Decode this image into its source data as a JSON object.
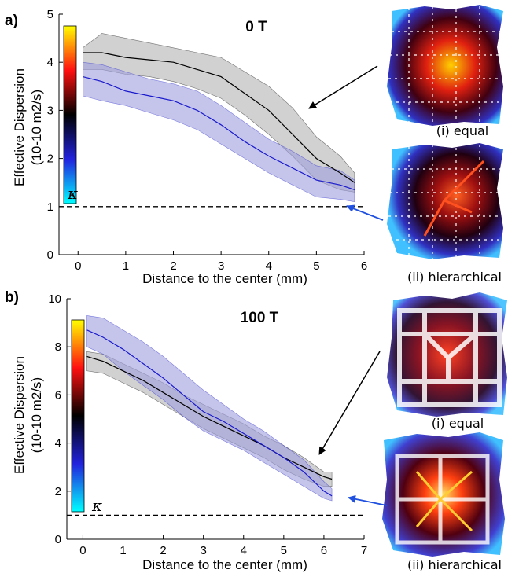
{
  "chart_data": [
    {
      "type": "line",
      "panel_label": "a)",
      "title": "0 T",
      "xlabel": "Distance to the center (mm)",
      "ylabel": "Effective Dispersion",
      "ylabel_unit": "(10-10 m2/s)",
      "xlim": [
        -0.4,
        6
      ],
      "ylim": [
        0,
        5
      ],
      "xticks": [
        0,
        1,
        2,
        3,
        4,
        5,
        6
      ],
      "yticks": [
        0,
        1,
        2,
        3,
        4,
        5
      ],
      "grid": false,
      "reference_line": {
        "label": "κ",
        "y": 1
      },
      "series": [
        {
          "color": "#000000",
          "fill": "#b3b3b3",
          "x": [
            0.1,
            0.5,
            1.0,
            1.5,
            2.0,
            2.5,
            3.0,
            3.5,
            4.0,
            4.5,
            5.0,
            5.5,
            5.8
          ],
          "y": [
            4.2,
            4.2,
            4.1,
            4.05,
            4.0,
            3.85,
            3.7,
            3.35,
            3.0,
            2.5,
            2.0,
            1.7,
            1.5
          ],
          "lower": [
            3.85,
            3.85,
            3.75,
            3.7,
            3.6,
            3.45,
            3.25,
            2.9,
            2.5,
            2.05,
            1.55,
            1.35,
            1.3
          ],
          "upper": [
            4.3,
            4.6,
            4.5,
            4.4,
            4.3,
            4.2,
            4.1,
            3.8,
            3.5,
            3.05,
            2.45,
            2.05,
            1.7
          ]
        },
        {
          "color": "#1a1acc",
          "fill": "#9f9fe0",
          "x": [
            0.1,
            0.5,
            1.0,
            1.5,
            2.0,
            2.5,
            3.0,
            3.5,
            4.0,
            4.5,
            5.0,
            5.5,
            5.8
          ],
          "y": [
            3.7,
            3.6,
            3.4,
            3.3,
            3.2,
            3.0,
            2.7,
            2.35,
            2.05,
            1.8,
            1.55,
            1.45,
            1.35
          ],
          "lower": [
            3.3,
            3.2,
            3.1,
            2.95,
            2.8,
            2.6,
            2.3,
            2.0,
            1.7,
            1.45,
            1.2,
            1.15,
            1.1
          ],
          "upper": [
            4.0,
            3.95,
            3.8,
            3.65,
            3.55,
            3.4,
            3.1,
            2.75,
            2.4,
            2.15,
            1.85,
            1.75,
            1.55
          ]
        }
      ],
      "colorbar": {
        "colormap": [
          "#00ffff",
          "#2222dd",
          "#000000",
          "#ff1010",
          "#ffff00"
        ]
      },
      "networks": [
        {
          "label": "(i) equal"
        },
        {
          "label": "(ii) hierarchical"
        }
      ]
    },
    {
      "type": "line",
      "panel_label": "b)",
      "title": "100 T",
      "xlabel": "Distance to the center (mm)",
      "ylabel": "Effective Dispersion",
      "ylabel_unit": "(10-10 m2/s)",
      "xlim": [
        -0.4,
        7
      ],
      "ylim": [
        0,
        10
      ],
      "xticks": [
        0,
        1,
        2,
        3,
        4,
        5,
        6,
        7
      ],
      "yticks": [
        0,
        2,
        4,
        6,
        8,
        10
      ],
      "grid": false,
      "reference_line": {
        "label": "κ",
        "y": 1
      },
      "series": [
        {
          "color": "#000000",
          "fill": "#b3b3b3",
          "x": [
            0.1,
            0.5,
            1.0,
            1.5,
            2.0,
            2.5,
            3.0,
            3.5,
            4.0,
            4.5,
            5.0,
            5.5,
            6.0,
            6.2
          ],
          "y": [
            7.6,
            7.4,
            7.0,
            6.6,
            6.1,
            5.6,
            5.1,
            4.7,
            4.3,
            3.9,
            3.4,
            3.0,
            2.6,
            2.5
          ],
          "lower": [
            7.0,
            6.9,
            6.5,
            6.1,
            5.6,
            5.1,
            4.6,
            4.2,
            3.8,
            3.4,
            2.9,
            2.5,
            2.2,
            2.2
          ],
          "upper": [
            7.8,
            7.7,
            7.3,
            6.9,
            6.5,
            6.0,
            5.6,
            5.2,
            4.8,
            4.3,
            3.9,
            3.4,
            2.8,
            2.8
          ]
        },
        {
          "color": "#1a1acc",
          "fill": "#9f9fe0",
          "x": [
            0.1,
            0.5,
            1.0,
            1.5,
            2.0,
            2.5,
            3.0,
            3.5,
            4.0,
            4.5,
            5.0,
            5.5,
            6.0,
            6.2
          ],
          "y": [
            8.7,
            8.4,
            7.9,
            7.3,
            6.7,
            6.0,
            5.3,
            4.9,
            4.4,
            3.9,
            3.4,
            2.8,
            2.0,
            1.8
          ],
          "lower": [
            8.0,
            7.7,
            7.0,
            6.4,
            5.8,
            5.1,
            4.5,
            4.1,
            3.7,
            3.2,
            2.7,
            2.2,
            1.7,
            1.6
          ],
          "upper": [
            9.3,
            9.2,
            8.7,
            8.2,
            7.6,
            6.9,
            6.2,
            5.6,
            5.0,
            4.5,
            3.9,
            3.3,
            2.4,
            2.1
          ]
        }
      ],
      "colorbar": {
        "colormap": [
          "#00ffff",
          "#2222dd",
          "#000000",
          "#ff1010",
          "#ffff00"
        ]
      },
      "networks": [
        {
          "label": "(i) equal"
        },
        {
          "label": "(ii) hierarchical"
        }
      ]
    }
  ]
}
